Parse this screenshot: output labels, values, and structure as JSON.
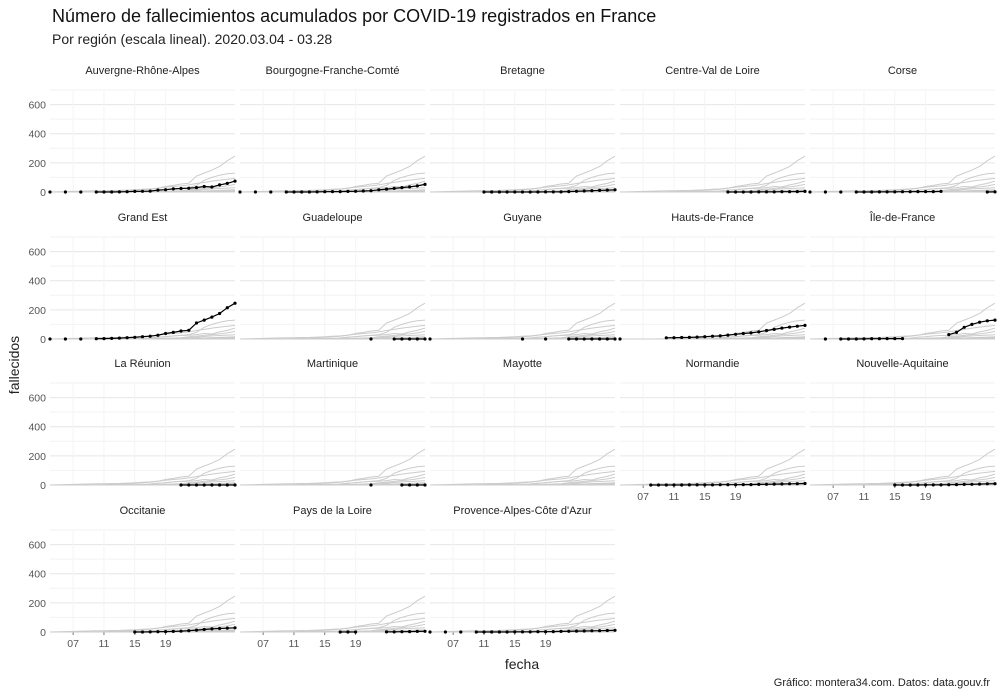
{
  "chart_data": {
    "type": "line",
    "title": "Número de fallecimientos acumulados por COVID-19 registrados en France",
    "subtitle": "Por región (escala lineal). 2020.03.04 - 03.28",
    "caption": "Gráfico: montera34.com. Datos: data.gouv.fr",
    "xlabel": "fecha",
    "ylabel": "fallecidos",
    "xlim": [
      "2020-03-04",
      "2020-03-28"
    ],
    "ylim": [
      0,
      700
    ],
    "x_ticks": [
      "07",
      "11",
      "15",
      "19"
    ],
    "y_ticks": [
      "0",
      "200",
      "400",
      "600"
    ],
    "grid": true,
    "legend": "none",
    "colors": {
      "highlight": "#000000",
      "background_lines": "#cccccc",
      "grid": "#ebebeb"
    },
    "x": [
      "2020-03-04",
      "2020-03-05",
      "2020-03-06",
      "2020-03-07",
      "2020-03-08",
      "2020-03-09",
      "2020-03-10",
      "2020-03-11",
      "2020-03-12",
      "2020-03-13",
      "2020-03-14",
      "2020-03-15",
      "2020-03-16",
      "2020-03-17",
      "2020-03-18",
      "2020-03-19",
      "2020-03-20",
      "2020-03-21",
      "2020-03-22",
      "2020-03-23",
      "2020-03-24",
      "2020-03-25",
      "2020-03-26",
      "2020-03-27",
      "2020-03-28"
    ],
    "series": [
      {
        "name": "Auvergne-Rhône-Alpes",
        "values": [
          0,
          null,
          0,
          null,
          0,
          null,
          0,
          0,
          0,
          1,
          2,
          4,
          5,
          6,
          13,
          16,
          21,
          24,
          26,
          30,
          38,
          34,
          49,
          59,
          75
        ]
      },
      {
        "name": "Bourgogne-Franche-Comté",
        "values": [
          0,
          null,
          0,
          null,
          0,
          null,
          0,
          0,
          0,
          0,
          1,
          2,
          3,
          3,
          4,
          5,
          7,
          9,
          15,
          20,
          25,
          30,
          35,
          42,
          52
        ]
      },
      {
        "name": "Bretagne",
        "values": [
          null,
          null,
          null,
          null,
          null,
          null,
          null,
          0,
          0,
          0,
          0,
          0,
          0,
          0,
          0,
          1,
          1,
          1,
          3,
          5,
          7,
          9,
          11,
          13,
          15
        ]
      },
      {
        "name": "Centre-Val de Loire",
        "values": [
          null,
          null,
          null,
          null,
          null,
          null,
          null,
          null,
          null,
          null,
          null,
          null,
          null,
          null,
          0,
          0,
          0,
          0,
          1,
          1,
          1,
          2,
          2,
          3,
          4
        ]
      },
      {
        "name": "Corse",
        "values": [
          0,
          null,
          0,
          null,
          0,
          null,
          0,
          0,
          0,
          1,
          1,
          1,
          2,
          2,
          3,
          3,
          3,
          4,
          null,
          null,
          null,
          null,
          null,
          0,
          1
        ]
      },
      {
        "name": "Grand Est",
        "values": [
          0,
          null,
          0,
          null,
          0,
          null,
          2,
          3,
          4,
          6,
          9,
          12,
          16,
          19,
          26,
          38,
          45,
          55,
          60,
          110,
          130,
          150,
          175,
          215,
          246
        ]
      },
      {
        "name": "Guadeloupe",
        "values": [
          null,
          null,
          null,
          null,
          null,
          null,
          null,
          null,
          null,
          null,
          null,
          null,
          null,
          null,
          null,
          null,
          null,
          0,
          null,
          null,
          0,
          0,
          0,
          0,
          0
        ]
      },
      {
        "name": "Guyane",
        "values": [
          0,
          null,
          null,
          null,
          null,
          null,
          null,
          null,
          null,
          null,
          null,
          null,
          0,
          null,
          null,
          0,
          null,
          null,
          0,
          0,
          0,
          0,
          0,
          0,
          0
        ]
      },
      {
        "name": "Hauts-de-France",
        "values": [
          0,
          null,
          null,
          null,
          null,
          null,
          8,
          9,
          10,
          11,
          13,
          16,
          19,
          21,
          27,
          32,
          38,
          42,
          49,
          58,
          66,
          75,
          82,
          88,
          93
        ]
      },
      {
        "name": "Île-de-France",
        "values": [
          null,
          null,
          0,
          null,
          0,
          0,
          0,
          1,
          2,
          2,
          3,
          3,
          3,
          null,
          null,
          null,
          null,
          null,
          30,
          45,
          80,
          100,
          115,
          125,
          130
        ]
      },
      {
        "name": "La Réunion",
        "values": [
          null,
          null,
          null,
          null,
          null,
          null,
          null,
          null,
          null,
          null,
          null,
          null,
          null,
          null,
          null,
          null,
          null,
          0,
          0,
          0,
          0,
          0,
          0,
          0,
          0
        ]
      },
      {
        "name": "Martinique",
        "values": [
          null,
          null,
          null,
          null,
          null,
          null,
          null,
          null,
          null,
          null,
          null,
          null,
          null,
          null,
          null,
          null,
          null,
          0,
          null,
          null,
          null,
          0,
          0,
          0,
          0
        ]
      },
      {
        "name": "Mayotte",
        "values": [
          null,
          null,
          null,
          null,
          null,
          null,
          null,
          null,
          null,
          null,
          null,
          null,
          null,
          null,
          null,
          null,
          null,
          null,
          null,
          null,
          null,
          null,
          null,
          null,
          null
        ]
      },
      {
        "name": "Normandie",
        "values": [
          null,
          null,
          null,
          null,
          0,
          0,
          0,
          0,
          0,
          1,
          1,
          1,
          1,
          2,
          2,
          2,
          3,
          3,
          4,
          5,
          6,
          7,
          8,
          9,
          10
        ]
      },
      {
        "name": "Nouvelle-Aquitaine",
        "values": [
          null,
          null,
          null,
          null,
          null,
          null,
          null,
          null,
          null,
          null,
          null,
          0,
          0,
          0,
          0,
          1,
          1,
          1,
          2,
          3,
          4,
          5,
          6,
          8,
          9
        ]
      },
      {
        "name": "Occitanie",
        "values": [
          null,
          null,
          null,
          null,
          null,
          null,
          null,
          null,
          null,
          null,
          null,
          0,
          0,
          1,
          2,
          3,
          4,
          6,
          9,
          13,
          17,
          21,
          24,
          27,
          29
        ]
      },
      {
        "name": "Pays de la Loire",
        "values": [
          null,
          null,
          null,
          null,
          null,
          null,
          null,
          null,
          null,
          null,
          null,
          null,
          null,
          0,
          0,
          0,
          null,
          null,
          null,
          1,
          1,
          2,
          3,
          4,
          5
        ]
      },
      {
        "name": "Provence-Alpes-Côte d'Azur",
        "values": [
          0,
          null,
          0,
          null,
          0,
          null,
          0,
          0,
          0,
          0,
          0,
          1,
          1,
          1,
          2,
          2,
          3,
          4,
          5,
          6,
          7,
          8,
          9,
          10,
          12
        ]
      }
    ]
  }
}
